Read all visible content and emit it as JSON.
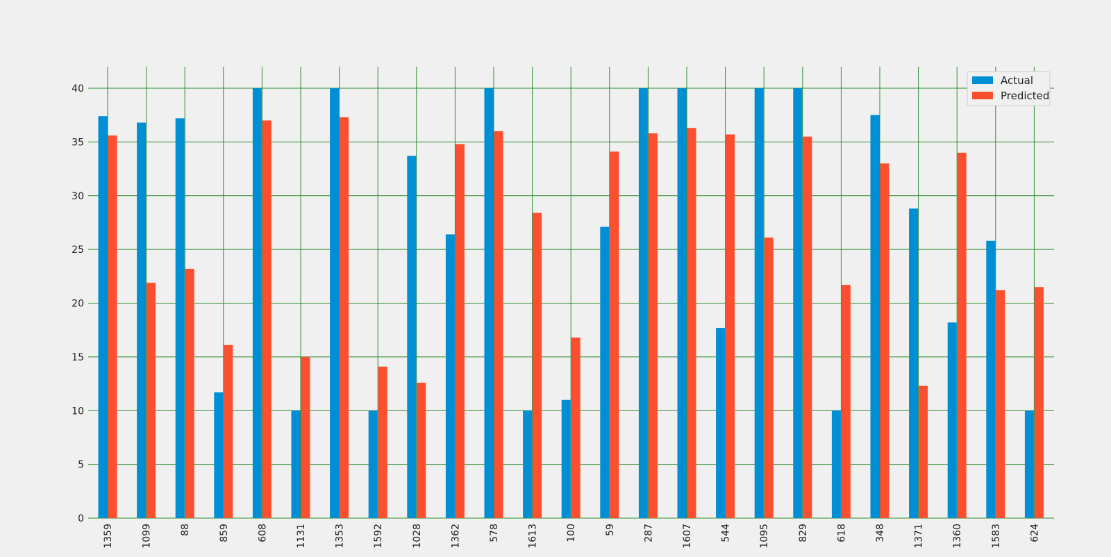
{
  "chart_data": {
    "type": "bar",
    "title": "",
    "xlabel": "",
    "ylabel": "",
    "categories": [
      "1359",
      "1099",
      "88",
      "859",
      "608",
      "1131",
      "1353",
      "1592",
      "1028",
      "1362",
      "578",
      "1613",
      "100",
      "59",
      "287",
      "1607",
      "544",
      "1095",
      "829",
      "618",
      "348",
      "1371",
      "1360",
      "1583",
      "624"
    ],
    "series": [
      {
        "name": "Actual",
        "color": "#008fd5",
        "values": [
          37.4,
          36.8,
          37.2,
          11.7,
          40.0,
          10.0,
          40.0,
          10.0,
          33.7,
          26.4,
          40.0,
          10.0,
          11.0,
          27.1,
          40.0,
          40.0,
          17.7,
          40.0,
          40.0,
          10.0,
          37.5,
          28.8,
          18.2,
          25.8,
          10.0
        ]
      },
      {
        "name": "Predicted",
        "color": "#fc4f30",
        "values": [
          35.6,
          21.9,
          23.2,
          16.1,
          37.0,
          15.0,
          37.3,
          14.1,
          12.6,
          34.8,
          36.0,
          28.4,
          16.8,
          34.1,
          35.8,
          36.3,
          35.7,
          26.1,
          35.5,
          21.7,
          33.0,
          12.3,
          34.0,
          21.2,
          21.5
        ]
      }
    ],
    "yticks": [
      0,
      5,
      10,
      15,
      20,
      25,
      30,
      35,
      40
    ],
    "ylim": [
      0,
      42
    ],
    "grid": true,
    "grid_color": "#2e8b2e",
    "legend_position": "top-right"
  }
}
